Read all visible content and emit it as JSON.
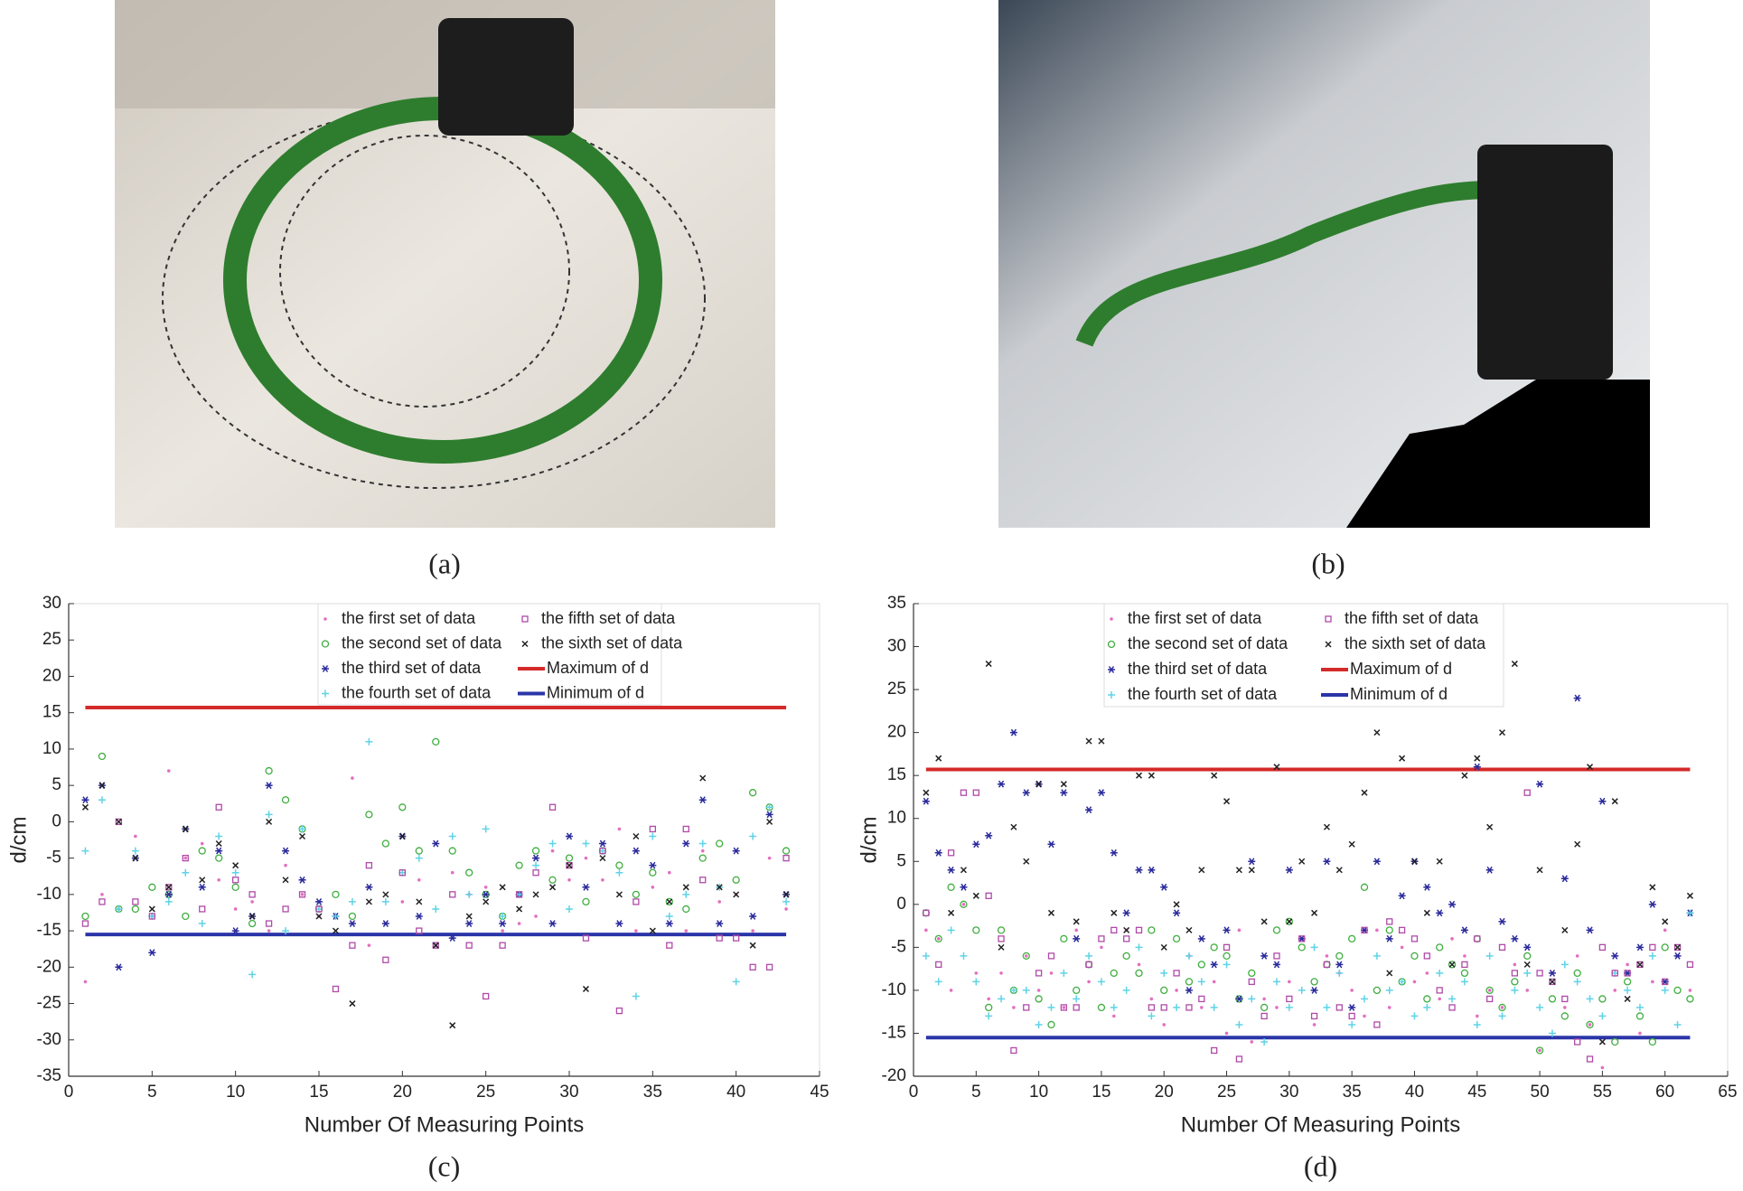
{
  "photos": [
    {
      "caption": "(a)"
    },
    {
      "caption": "(b)"
    }
  ],
  "chart_data": [
    {
      "type": "scatter",
      "caption": "(c)",
      "xlabel": "Number Of Measuring Points",
      "ylabel": "d/cm",
      "xlim": [
        0,
        45
      ],
      "xticks": [
        0,
        5,
        10,
        15,
        20,
        25,
        30,
        35,
        40,
        45
      ],
      "ylim": [
        -35,
        30
      ],
      "yticks": [
        -35,
        -30,
        -25,
        -20,
        -15,
        -10,
        -5,
        0,
        5,
        10,
        15,
        20,
        25,
        30
      ],
      "x": [
        1,
        2,
        3,
        4,
        5,
        6,
        7,
        8,
        9,
        10,
        11,
        12,
        13,
        14,
        15,
        16,
        17,
        18,
        19,
        20,
        21,
        22,
        23,
        24,
        25,
        26,
        27,
        28,
        29,
        30,
        31,
        32,
        33,
        34,
        35,
        36,
        37,
        38,
        39,
        40,
        41,
        42,
        43
      ],
      "series": [
        {
          "name": "the first set of data",
          "color": "#e36fc0",
          "marker": "point",
          "values": [
            -22,
            -10,
            -12,
            -2,
            -13,
            7,
            -5,
            -3,
            -8,
            -12,
            -11,
            -15,
            -6,
            -10,
            -13,
            -13,
            6,
            -17,
            -14,
            -11,
            -8,
            -17,
            -7,
            -10,
            -9,
            -15,
            -14,
            -13,
            -4,
            -8,
            -5,
            -8,
            -1,
            -15,
            -9,
            -7,
            -15,
            -4,
            -11,
            -10,
            -15,
            -5,
            -12
          ]
        },
        {
          "name": "the second set of data",
          "color": "#3fae3f",
          "marker": "circle",
          "values": [
            -13,
            9,
            -12,
            -12,
            -9,
            -10,
            -13,
            -4,
            -5,
            -9,
            -14,
            7,
            3,
            -1,
            -12,
            -10,
            -13,
            1,
            -3,
            2,
            -4,
            11,
            -4,
            -7,
            -10,
            -13,
            -6,
            -4,
            -8,
            -5,
            -11,
            -4,
            -6,
            -10,
            -7,
            -11,
            -12,
            -5,
            -3,
            -8,
            4,
            2,
            -4
          ]
        },
        {
          "name": "the third set of data",
          "color": "#2a2a9c",
          "marker": "star",
          "values": [
            3,
            5,
            -20,
            -5,
            -18,
            -10,
            -1,
            -9,
            -4,
            -15,
            -13,
            5,
            -4,
            -8,
            -11,
            -13,
            -14,
            -9,
            -14,
            -2,
            -13,
            -3,
            -16,
            -14,
            -10,
            -14,
            -10,
            -5,
            -14,
            -2,
            -9,
            -3,
            -14,
            -4,
            -6,
            -14,
            -3,
            3,
            -14,
            -4,
            -13,
            1,
            -10
          ]
        },
        {
          "name": "the fourth set of data",
          "color": "#5fd3e6",
          "marker": "plus",
          "values": [
            -4,
            3,
            -12,
            -4,
            -13,
            -11,
            -7,
            -14,
            -2,
            -7,
            -21,
            1,
            -15,
            -1,
            -12,
            -13,
            -11,
            11,
            -11,
            -7,
            -5,
            -12,
            -2,
            -10,
            -1,
            -13,
            -10,
            -6,
            -3,
            -12,
            -3,
            -4,
            -7,
            -24,
            -2,
            -13,
            -10,
            -3,
            -9,
            -22,
            -2,
            2,
            -11
          ]
        },
        {
          "name": "the fifth set of data",
          "color": "#b04aa8",
          "marker": "square",
          "values": [
            -14,
            -11,
            0,
            -11,
            -13,
            -9,
            -5,
            -12,
            2,
            -8,
            -10,
            -14,
            -12,
            -10,
            -12,
            -23,
            -17,
            -6,
            -19,
            -7,
            -15,
            -17,
            -10,
            -17,
            -24,
            -17,
            -10,
            -7,
            2,
            -6,
            -16,
            -4,
            -26,
            -11,
            -1,
            -17,
            -1,
            -8,
            -16,
            -16,
            -20,
            -20,
            -5
          ]
        },
        {
          "name": "the sixth set of data",
          "color": "#222222",
          "marker": "x",
          "values": [
            2,
            5,
            0,
            -5,
            -12,
            -9,
            -1,
            -8,
            -3,
            -6,
            -13,
            0,
            -8,
            -2,
            -13,
            -15,
            -25,
            -11,
            -10,
            -2,
            -11,
            -17,
            -28,
            -13,
            -11,
            -9,
            -12,
            -10,
            -9,
            -6,
            -23,
            -5,
            -10,
            -2,
            -15,
            -11,
            -9,
            6,
            -9,
            -10,
            -17,
            0,
            -10
          ]
        }
      ],
      "hlines": [
        {
          "name": "Maximum of d",
          "color": "#d42a2a",
          "value": 15.7,
          "xrange": [
            1,
            43
          ]
        },
        {
          "name": "Minimum of d",
          "color": "#2a35a8",
          "value": -15.5,
          "xrange": [
            1,
            43
          ]
        }
      ]
    },
    {
      "type": "scatter",
      "caption": "(d)",
      "xlabel": "Number Of Measuring Points",
      "ylabel": "d/cm",
      "xlim": [
        0,
        65
      ],
      "xticks": [
        0,
        5,
        10,
        15,
        20,
        25,
        30,
        35,
        40,
        45,
        50,
        55,
        60,
        65
      ],
      "ylim": [
        -20,
        35
      ],
      "yticks": [
        -20,
        -15,
        -10,
        -5,
        0,
        5,
        10,
        15,
        20,
        25,
        30,
        35
      ],
      "x": [
        1,
        2,
        3,
        4,
        5,
        6,
        7,
        8,
        9,
        10,
        11,
        12,
        13,
        14,
        15,
        16,
        17,
        18,
        19,
        20,
        21,
        22,
        23,
        24,
        25,
        26,
        27,
        28,
        29,
        30,
        31,
        32,
        33,
        34,
        35,
        36,
        37,
        38,
        39,
        40,
        41,
        42,
        43,
        44,
        45,
        46,
        47,
        48,
        49,
        50,
        51,
        52,
        53,
        54,
        55,
        56,
        57,
        58,
        59,
        60,
        61,
        62
      ],
      "series": [
        {
          "name": "the first set of data",
          "color": "#e36fc0",
          "marker": "point",
          "values": [
            -3,
            -4,
            -10,
            0,
            -8,
            -11,
            -8,
            -12,
            -6,
            -10,
            -8,
            -12,
            -3,
            -9,
            -5,
            -13,
            -3,
            -7,
            -11,
            -14,
            -10,
            -6,
            -12,
            -9,
            -15,
            -3,
            -16,
            -11,
            -12,
            -9,
            -4,
            -14,
            -6,
            -8,
            -10,
            -13,
            -3,
            -12,
            -5,
            -9,
            -8,
            -11,
            -4,
            -6,
            -13,
            -10,
            -12,
            -7,
            -10,
            -17,
            -8,
            -12,
            -6,
            -14,
            -19,
            -10,
            -7,
            -15,
            -9,
            -3,
            -6,
            -10
          ]
        },
        {
          "name": "the second set of data",
          "color": "#3fae3f",
          "marker": "circle",
          "values": [
            -1,
            -4,
            2,
            0,
            -3,
            -12,
            -3,
            -10,
            -6,
            -11,
            -14,
            -4,
            -10,
            -7,
            -12,
            -8,
            -6,
            -8,
            -3,
            -10,
            -4,
            -9,
            -7,
            -5,
            -6,
            -11,
            -8,
            -12,
            -3,
            -2,
            -5,
            -9,
            -7,
            -6,
            -4,
            2,
            -10,
            -3,
            -9,
            -6,
            -11,
            -5,
            -7,
            -8,
            -4,
            -10,
            -12,
            -9,
            -6,
            -17,
            -11,
            -13,
            -8,
            -14,
            -11,
            -16,
            -9,
            -13,
            -16,
            -5,
            -10,
            -11
          ]
        },
        {
          "name": "the third set of data",
          "color": "#2a2a9c",
          "marker": "star",
          "values": [
            12,
            6,
            4,
            2,
            7,
            8,
            14,
            20,
            13,
            14,
            7,
            13,
            -4,
            11,
            13,
            6,
            -1,
            4,
            4,
            2,
            -1,
            -10,
            -4,
            -7,
            -3,
            -11,
            5,
            -6,
            -7,
            4,
            -4,
            -10,
            5,
            -7,
            -12,
            -3,
            5,
            -4,
            1,
            5,
            2,
            -1,
            0,
            -3,
            16,
            4,
            -2,
            -4,
            -5,
            14,
            -8,
            3,
            24,
            -3,
            12,
            -6,
            -8,
            -5,
            0,
            -9,
            -6,
            -1
          ]
        },
        {
          "name": "the fourth set of data",
          "color": "#5fd3e6",
          "marker": "plus",
          "values": [
            -6,
            -9,
            -3,
            -6,
            -9,
            -13,
            -11,
            -10,
            -10,
            -14,
            -12,
            -8,
            -11,
            -6,
            -9,
            -12,
            -10,
            -5,
            -13,
            -8,
            -12,
            -6,
            -9,
            -12,
            -7,
            -14,
            -11,
            -16,
            -9,
            -12,
            -10,
            -5,
            -12,
            -8,
            -14,
            -11,
            -6,
            -10,
            -9,
            -13,
            -12,
            -8,
            -11,
            -9,
            -14,
            -6,
            -13,
            -10,
            -8,
            -12,
            -15,
            -7,
            -9,
            -11,
            -13,
            -8,
            -10,
            -12,
            -6,
            -10,
            -14,
            -1
          ]
        },
        {
          "name": "the fifth set of data",
          "color": "#b04aa8",
          "marker": "square",
          "values": [
            -1,
            -7,
            6,
            13,
            13,
            1,
            -4,
            -17,
            -12,
            -8,
            -6,
            -12,
            -12,
            -7,
            -4,
            -3,
            -4,
            -3,
            -12,
            -12,
            -8,
            -12,
            -11,
            -17,
            -5,
            -18,
            -9,
            -13,
            -6,
            -11,
            -4,
            -13,
            -7,
            -12,
            -13,
            -3,
            -14,
            -2,
            -3,
            -4,
            -6,
            -10,
            -12,
            -7,
            -4,
            -11,
            -5,
            -8,
            13,
            -8,
            -9,
            -11,
            -16,
            -18,
            -5,
            -8,
            -8,
            -7,
            -5,
            -9,
            -5,
            -7
          ]
        },
        {
          "name": "the sixth set of data",
          "color": "#222222",
          "marker": "x",
          "values": [
            13,
            17,
            -1,
            4,
            1,
            28,
            -5,
            9,
            5,
            14,
            -1,
            14,
            -2,
            19,
            19,
            -1,
            -3,
            15,
            15,
            -5,
            0,
            -3,
            4,
            15,
            12,
            4,
            4,
            -2,
            16,
            -2,
            5,
            -1,
            9,
            4,
            7,
            13,
            20,
            -8,
            17,
            5,
            -1,
            5,
            -7,
            15,
            17,
            9,
            20,
            28,
            -7,
            4,
            -9,
            -3,
            7,
            16,
            -16,
            12,
            -11,
            -7,
            2,
            -2,
            -5,
            1
          ]
        }
      ],
      "hlines": [
        {
          "name": "Maximum of d",
          "color": "#d42a2a",
          "value": 15.7,
          "xrange": [
            1,
            62
          ]
        },
        {
          "name": "Minimum of d",
          "color": "#2a35a8",
          "value": -15.5,
          "xrange": [
            1,
            62
          ]
        }
      ]
    }
  ]
}
